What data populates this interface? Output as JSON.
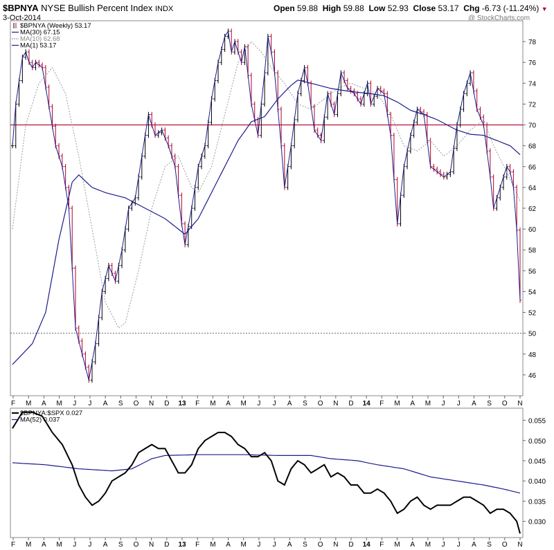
{
  "header": {
    "symbol": "$BPNYA",
    "description": "NYSE Bullish Percent Index",
    "exchange": "INDX",
    "date": "3-Oct-2014",
    "open_label": "Open",
    "open": "59.88",
    "high_label": "High",
    "high": "59.88",
    "low_label": "Low",
    "low": "52.93",
    "close_label": "Close",
    "close": "53.17",
    "chg_label": "Chg",
    "chg": "-6.73 (-11.24%)",
    "watermark": "@ StockCharts.com"
  },
  "colors": {
    "up_bar": "#000000",
    "down_bar": "#b0002a",
    "ma30": "#1a1a8c",
    "ma10": "#9a9a9a",
    "ref_line": "#b0002a",
    "ratio": "#000000",
    "ratio_ma": "#1a1a8c"
  },
  "chart_data": [
    {
      "type": "ohlc",
      "legend": [
        {
          "text": "$BPNYA (Weekly) 53.17"
        },
        {
          "text": "MA(30) 67.15"
        },
        {
          "text": "MA(10) 62.68"
        },
        {
          "text": "MA(1) 53.17"
        }
      ],
      "ylim": [
        44,
        80
      ],
      "y_ticks": [
        46,
        48,
        50,
        52,
        54,
        56,
        58,
        60,
        62,
        64,
        66,
        68,
        70,
        72,
        74,
        76,
        78
      ],
      "x_ticks": [
        "F",
        "M",
        "A",
        "M",
        "J",
        "J",
        "A",
        "S",
        "O",
        "N",
        "D",
        "13",
        "F",
        "M",
        "A",
        "M",
        "J",
        "J",
        "A",
        "S",
        "O",
        "N",
        "D",
        "14",
        "F",
        "M",
        "A",
        "M",
        "J",
        "J",
        "A",
        "S",
        "O",
        "N"
      ],
      "reference_lines": [
        {
          "y": 70,
          "style": "solid"
        },
        {
          "y": 50,
          "style": "dotted"
        }
      ],
      "close_anchors": [
        [
          0,
          68.0
        ],
        [
          1,
          72.0
        ],
        [
          3,
          76.5
        ],
        [
          4,
          77.0
        ],
        [
          5,
          76.0
        ],
        [
          6,
          75.5
        ],
        [
          7,
          76.0
        ],
        [
          9,
          75.5
        ],
        [
          13,
          68.0
        ],
        [
          15,
          66.0
        ],
        [
          17,
          62.0
        ],
        [
          19,
          50.5
        ],
        [
          21,
          48.0
        ],
        [
          23,
          45.5
        ],
        [
          25,
          49.0
        ],
        [
          27,
          54.0
        ],
        [
          29,
          56.5
        ],
        [
          31,
          55.0
        ],
        [
          33,
          58.0
        ],
        [
          35,
          62.0
        ],
        [
          37,
          63.0
        ],
        [
          39,
          67.0
        ],
        [
          41,
          71.0
        ],
        [
          43,
          69.0
        ],
        [
          45,
          69.5
        ],
        [
          47,
          68.0
        ],
        [
          49,
          66.0
        ],
        [
          51,
          60.5
        ],
        [
          52,
          58.5
        ],
        [
          54,
          62.0
        ],
        [
          56,
          66.0
        ],
        [
          58,
          68.0
        ],
        [
          60,
          72.5
        ],
        [
          62,
          76.0
        ],
        [
          64,
          78.5
        ],
        [
          65,
          79.0
        ],
        [
          66,
          77.0
        ],
        [
          67,
          78.0
        ],
        [
          69,
          76.0
        ],
        [
          70,
          77.5
        ],
        [
          72,
          72.0
        ],
        [
          74,
          69.0
        ],
        [
          76,
          75.0
        ],
        [
          77,
          78.5
        ],
        [
          78,
          77.0
        ],
        [
          79,
          75.0
        ],
        [
          81,
          68.0
        ],
        [
          82,
          64.0
        ],
        [
          84,
          68.0
        ],
        [
          86,
          73.0
        ],
        [
          88,
          75.5
        ],
        [
          89,
          74.0
        ],
        [
          91,
          69.5
        ],
        [
          93,
          68.5
        ],
        [
          95,
          73.0
        ],
        [
          97,
          71.0
        ],
        [
          99,
          75.0
        ],
        [
          101,
          73.5
        ],
        [
          103,
          73.0
        ],
        [
          105,
          72.0
        ],
        [
          107,
          74.0
        ],
        [
          108,
          72.0
        ],
        [
          110,
          73.5
        ],
        [
          112,
          73.0
        ],
        [
          114,
          69.0
        ],
        [
          116,
          60.5
        ],
        [
          118,
          66.0
        ],
        [
          120,
          69.0
        ],
        [
          122,
          71.5
        ],
        [
          124,
          71.0
        ],
        [
          126,
          66.0
        ],
        [
          128,
          65.5
        ],
        [
          130,
          65.0
        ],
        [
          132,
          65.5
        ],
        [
          134,
          70.0
        ],
        [
          136,
          73.0
        ],
        [
          138,
          75.0
        ],
        [
          140,
          71.5
        ],
        [
          142,
          70.0
        ],
        [
          144,
          65.0
        ],
        [
          145,
          62.0
        ],
        [
          147,
          64.0
        ],
        [
          149,
          66.0
        ],
        [
          150,
          65.5
        ],
        [
          151,
          64.0
        ],
        [
          152,
          59.9
        ],
        [
          153,
          53.17
        ]
      ],
      "ma30_anchors": [
        [
          0,
          47.0
        ],
        [
          6,
          49.0
        ],
        [
          10,
          52.0
        ],
        [
          14,
          59.0
        ],
        [
          18,
          64.5
        ],
        [
          20,
          65.2
        ],
        [
          24,
          64.0
        ],
        [
          28,
          63.5
        ],
        [
          34,
          63.0
        ],
        [
          40,
          62.0
        ],
        [
          46,
          61.0
        ],
        [
          52,
          59.5
        ],
        [
          56,
          61.0
        ],
        [
          60,
          63.5
        ],
        [
          64,
          66.0
        ],
        [
          68,
          68.5
        ],
        [
          72,
          70.3
        ],
        [
          76,
          70.8
        ],
        [
          80,
          72.5
        ],
        [
          84,
          73.8
        ],
        [
          86,
          74.3
        ],
        [
          90,
          74.0
        ],
        [
          96,
          73.5
        ],
        [
          102,
          73.2
        ],
        [
          108,
          73.0
        ],
        [
          112,
          72.8
        ],
        [
          116,
          72.2
        ],
        [
          120,
          71.4
        ],
        [
          124,
          71.0
        ],
        [
          128,
          70.5
        ],
        [
          134,
          69.5
        ],
        [
          138,
          69.1
        ],
        [
          142,
          69.0
        ],
        [
          146,
          68.5
        ],
        [
          150,
          68.0
        ],
        [
          153,
          67.15
        ]
      ],
      "ma10_anchors": [
        [
          0,
          60.0
        ],
        [
          4,
          70.0
        ],
        [
          8,
          74.0
        ],
        [
          12,
          75.5
        ],
        [
          16,
          73.0
        ],
        [
          20,
          67.0
        ],
        [
          24,
          60.0
        ],
        [
          28,
          53.0
        ],
        [
          32,
          50.5
        ],
        [
          34,
          51.0
        ],
        [
          38,
          56.0
        ],
        [
          42,
          62.0
        ],
        [
          46,
          66.0
        ],
        [
          50,
          67.0
        ],
        [
          54,
          64.0
        ],
        [
          56,
          63.5
        ],
        [
          60,
          66.0
        ],
        [
          64,
          71.0
        ],
        [
          68,
          76.0
        ],
        [
          72,
          78.0
        ],
        [
          75,
          77.0
        ],
        [
          78,
          75.5
        ],
        [
          82,
          74.0
        ],
        [
          86,
          72.0
        ],
        [
          90,
          71.5
        ],
        [
          94,
          72.5
        ],
        [
          98,
          73.5
        ],
        [
          102,
          74.0
        ],
        [
          106,
          73.5
        ],
        [
          110,
          73.0
        ],
        [
          114,
          71.0
        ],
        [
          118,
          68.0
        ],
        [
          122,
          67.5
        ],
        [
          126,
          68.5
        ],
        [
          130,
          67.0
        ],
        [
          134,
          68.0
        ],
        [
          138,
          69.5
        ],
        [
          142,
          70.5
        ],
        [
          145,
          68.0
        ],
        [
          149,
          65.5
        ],
        [
          153,
          62.68
        ]
      ]
    },
    {
      "type": "line",
      "legend": [
        {
          "text": "$BPNYA:$SPX 0.027"
        },
        {
          "text": "MA(52) 0.037"
        }
      ],
      "ylim": [
        0.026,
        0.058
      ],
      "y_ticks": [
        "0.030",
        "0.035",
        "0.040",
        "0.045",
        "0.050",
        "0.055"
      ],
      "x_ticks": [
        "F",
        "M",
        "A",
        "M",
        "J",
        "J",
        "A",
        "S",
        "O",
        "N",
        "D",
        "13",
        "F",
        "M",
        "A",
        "M",
        "J",
        "J",
        "A",
        "S",
        "O",
        "N",
        "D",
        "14",
        "F",
        "M",
        "A",
        "M",
        "J",
        "J",
        "A",
        "S",
        "O",
        "N"
      ],
      "ratio_anchors": [
        [
          0,
          0.053
        ],
        [
          3,
          0.057
        ],
        [
          6,
          0.057
        ],
        [
          9,
          0.056
        ],
        [
          12,
          0.052
        ],
        [
          15,
          0.049
        ],
        [
          18,
          0.044
        ],
        [
          20,
          0.039
        ],
        [
          22,
          0.036
        ],
        [
          24,
          0.034
        ],
        [
          26,
          0.035
        ],
        [
          28,
          0.037
        ],
        [
          30,
          0.04
        ],
        [
          32,
          0.041
        ],
        [
          34,
          0.042
        ],
        [
          36,
          0.044
        ],
        [
          38,
          0.047
        ],
        [
          40,
          0.048
        ],
        [
          42,
          0.049
        ],
        [
          44,
          0.048
        ],
        [
          46,
          0.048
        ],
        [
          48,
          0.045
        ],
        [
          50,
          0.042
        ],
        [
          52,
          0.042
        ],
        [
          54,
          0.044
        ],
        [
          56,
          0.048
        ],
        [
          58,
          0.05
        ],
        [
          60,
          0.051
        ],
        [
          62,
          0.052
        ],
        [
          64,
          0.052
        ],
        [
          66,
          0.051
        ],
        [
          68,
          0.049
        ],
        [
          70,
          0.048
        ],
        [
          72,
          0.046
        ],
        [
          74,
          0.046
        ],
        [
          76,
          0.047
        ],
        [
          78,
          0.045
        ],
        [
          80,
          0.04
        ],
        [
          82,
          0.039
        ],
        [
          84,
          0.043
        ],
        [
          86,
          0.045
        ],
        [
          88,
          0.044
        ],
        [
          90,
          0.042
        ],
        [
          92,
          0.043
        ],
        [
          94,
          0.044
        ],
        [
          96,
          0.041
        ],
        [
          98,
          0.042
        ],
        [
          100,
          0.041
        ],
        [
          102,
          0.039
        ],
        [
          104,
          0.039
        ],
        [
          106,
          0.037
        ],
        [
          108,
          0.037
        ],
        [
          110,
          0.038
        ],
        [
          112,
          0.037
        ],
        [
          114,
          0.035
        ],
        [
          116,
          0.032
        ],
        [
          118,
          0.033
        ],
        [
          120,
          0.035
        ],
        [
          122,
          0.036
        ],
        [
          124,
          0.034
        ],
        [
          126,
          0.033
        ],
        [
          128,
          0.034
        ],
        [
          130,
          0.034
        ],
        [
          132,
          0.034
        ],
        [
          134,
          0.035
        ],
        [
          136,
          0.036
        ],
        [
          138,
          0.036
        ],
        [
          140,
          0.035
        ],
        [
          142,
          0.034
        ],
        [
          144,
          0.032
        ],
        [
          146,
          0.033
        ],
        [
          148,
          0.033
        ],
        [
          150,
          0.032
        ],
        [
          152,
          0.03
        ],
        [
          153,
          0.027
        ]
      ],
      "ratio_ma_anchors": [
        [
          0,
          0.0445
        ],
        [
          10,
          0.044
        ],
        [
          20,
          0.043
        ],
        [
          30,
          0.0425
        ],
        [
          36,
          0.043
        ],
        [
          42,
          0.0455
        ],
        [
          46,
          0.0463
        ],
        [
          56,
          0.0465
        ],
        [
          70,
          0.0465
        ],
        [
          80,
          0.0463
        ],
        [
          90,
          0.0463
        ],
        [
          96,
          0.0455
        ],
        [
          104,
          0.045
        ],
        [
          110,
          0.044
        ],
        [
          118,
          0.043
        ],
        [
          126,
          0.041
        ],
        [
          134,
          0.04
        ],
        [
          142,
          0.039
        ],
        [
          148,
          0.038
        ],
        [
          153,
          0.037
        ]
      ]
    }
  ]
}
